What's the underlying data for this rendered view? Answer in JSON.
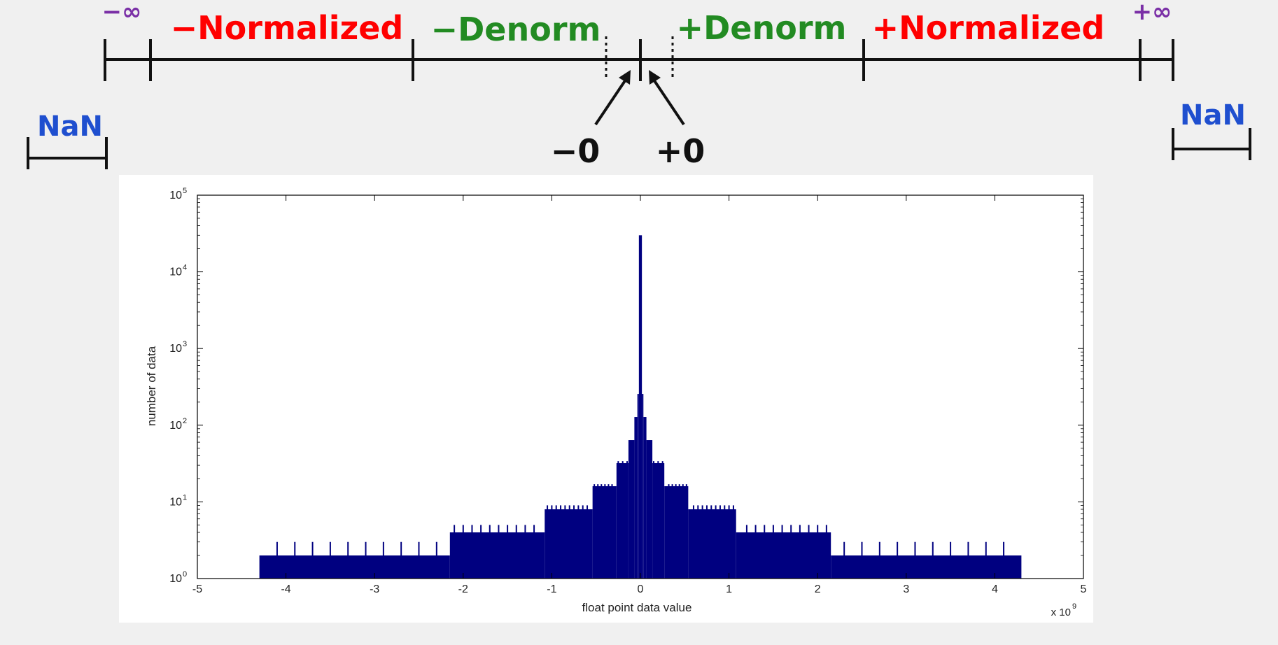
{
  "number_line": {
    "neg_inf": "−∞",
    "neg_normalized": "−Normalized",
    "neg_denorm": "−Denorm",
    "pos_denorm": "+Denorm",
    "pos_normalized": "+Normalized",
    "pos_inf": "+∞",
    "nan_left": "NaN",
    "nan_right": "NaN",
    "neg_zero": "−0",
    "pos_zero": "+0",
    "colors": {
      "normalized": "#ff0000",
      "denorm": "#228b22",
      "infinity": "#7a2fa6",
      "nan": "#1f4fcf",
      "line": "#111111"
    }
  },
  "chart_data": {
    "type": "bar",
    "title": "",
    "xlabel": "float point data value",
    "ylabel": "number of data",
    "x_multiplier_label": "x 10",
    "x_multiplier_exponent": "9",
    "xlim": [
      -5,
      5
    ],
    "ylim": [
      1,
      100000
    ],
    "yscale": "log",
    "xticks": [
      "-5",
      "-4",
      "-3",
      "-2",
      "-1",
      "0",
      "1",
      "2",
      "3",
      "4",
      "5"
    ],
    "ytick_base": "10",
    "ytick_exponents": [
      "0",
      "1",
      "2",
      "3",
      "4",
      "5"
    ],
    "bar_color": "#000080",
    "grid": false,
    "legend": "none",
    "steps": [
      {
        "x0": -4.3,
        "x1": -2.15,
        "value": 2
      },
      {
        "x0": -2.15,
        "x1": -1.08,
        "value": 4
      },
      {
        "x0": -1.08,
        "x1": -0.54,
        "value": 8
      },
      {
        "x0": -0.54,
        "x1": -0.27,
        "value": 16
      },
      {
        "x0": -0.27,
        "x1": -0.135,
        "value": 32
      },
      {
        "x0": -0.135,
        "x1": -0.068,
        "value": 64
      },
      {
        "x0": -0.068,
        "x1": -0.034,
        "value": 128
      },
      {
        "x0": -0.034,
        "x1": -0.017,
        "value": 256
      },
      {
        "x0": -0.017,
        "x1": 0.017,
        "value": 30000
      },
      {
        "x0": 0.017,
        "x1": 0.034,
        "value": 256
      },
      {
        "x0": 0.034,
        "x1": 0.068,
        "value": 128
      },
      {
        "x0": 0.068,
        "x1": 0.135,
        "value": 64
      },
      {
        "x0": 0.135,
        "x1": 0.27,
        "value": 32
      },
      {
        "x0": 0.27,
        "x1": 0.54,
        "value": 16
      },
      {
        "x0": 0.54,
        "x1": 1.08,
        "value": 8
      },
      {
        "x0": 1.08,
        "x1": 2.15,
        "value": 4
      },
      {
        "x0": 2.15,
        "x1": 4.3,
        "value": 2
      }
    ],
    "spikes": [
      {
        "value": 3,
        "x": [
          -4.1,
          -3.9,
          -3.7,
          -3.5,
          -3.3,
          -3.1,
          -2.9,
          -2.7,
          -2.5,
          -2.3,
          2.3,
          2.5,
          2.7,
          2.9,
          3.1,
          3.3,
          3.5,
          3.7,
          3.9,
          4.1
        ]
      },
      {
        "value": 5,
        "x": [
          -2.1,
          -2.0,
          -1.9,
          -1.8,
          -1.7,
          -1.6,
          -1.5,
          -1.4,
          -1.3,
          -1.2,
          1.2,
          1.3,
          1.4,
          1.5,
          1.6,
          1.7,
          1.8,
          1.9,
          2.0,
          2.1
        ]
      },
      {
        "value": 9,
        "x": [
          -1.05,
          -1.0,
          -0.95,
          -0.9,
          -0.85,
          -0.8,
          -0.75,
          -0.7,
          -0.65,
          -0.6,
          0.6,
          0.65,
          0.7,
          0.75,
          0.8,
          0.85,
          0.9,
          0.95,
          1.0,
          1.05
        ]
      },
      {
        "value": 17,
        "x": [
          -0.52,
          -0.48,
          -0.44,
          -0.4,
          -0.36,
          -0.32,
          0.32,
          0.36,
          0.4,
          0.44,
          0.48,
          0.52
        ]
      },
      {
        "value": 34,
        "x": [
          -0.25,
          -0.2,
          -0.15,
          0.15,
          0.2,
          0.25
        ]
      }
    ]
  }
}
